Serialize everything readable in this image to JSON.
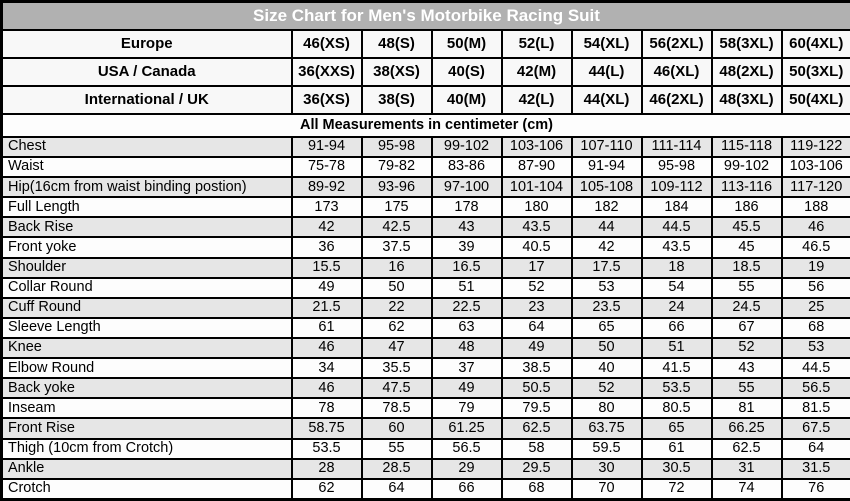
{
  "chart_data": {
    "type": "table",
    "title": "Size Chart for Men's Motorbike Racing Suit",
    "units_note": "All Measurements in centimeter (cm)",
    "size_header_rows": [
      {
        "label": "Europe",
        "values": [
          "46(XS)",
          "48(S)",
          "50(M)",
          "52(L)",
          "54(XL)",
          "56(2XL)",
          "58(3XL)",
          "60(4XL)"
        ]
      },
      {
        "label": "USA / Canada",
        "values": [
          "36(XXS)",
          "38(XS)",
          "40(S)",
          "42(M)",
          "44(L)",
          "46(XL)",
          "48(2XL)",
          "50(3XL)"
        ]
      },
      {
        "label": "International / UK",
        "values": [
          "36(XS)",
          "38(S)",
          "40(M)",
          "42(L)",
          "44(XL)",
          "46(2XL)",
          "48(3XL)",
          "50(4XL)"
        ]
      }
    ],
    "measurement_rows": [
      {
        "label": "Chest",
        "values": [
          "91-94",
          "95-98",
          "99-102",
          "103-106",
          "107-110",
          "111-114",
          "115-118",
          "119-122"
        ]
      },
      {
        "label": "Waist",
        "values": [
          "75-78",
          "79-82",
          "83-86",
          "87-90",
          "91-94",
          "95-98",
          "99-102",
          "103-106"
        ]
      },
      {
        "label": "Hip(16cm from waist binding postion)",
        "values": [
          "89-92",
          "93-96",
          "97-100",
          "101-104",
          "105-108",
          "109-112",
          "113-116",
          "117-120"
        ]
      },
      {
        "label": "Full Length",
        "values": [
          "173",
          "175",
          "178",
          "180",
          "182",
          "184",
          "186",
          "188"
        ]
      },
      {
        "label": "Back Rise",
        "values": [
          "42",
          "42.5",
          "43",
          "43.5",
          "44",
          "44.5",
          "45.5",
          "46"
        ]
      },
      {
        "label": "Front yoke",
        "values": [
          "36",
          "37.5",
          "39",
          "40.5",
          "42",
          "43.5",
          "45",
          "46.5"
        ]
      },
      {
        "label": "Shoulder",
        "values": [
          "15.5",
          "16",
          "16.5",
          "17",
          "17.5",
          "18",
          "18.5",
          "19"
        ]
      },
      {
        "label": "Collar Round",
        "values": [
          "49",
          "50",
          "51",
          "52",
          "53",
          "54",
          "55",
          "56"
        ]
      },
      {
        "label": "Cuff Round",
        "values": [
          "21.5",
          "22",
          "22.5",
          "23",
          "23.5",
          "24",
          "24.5",
          "25"
        ]
      },
      {
        "label": "Sleeve Length",
        "values": [
          "61",
          "62",
          "63",
          "64",
          "65",
          "66",
          "67",
          "68"
        ]
      },
      {
        "label": "Knee",
        "values": [
          "46",
          "47",
          "48",
          "49",
          "50",
          "51",
          "52",
          "53"
        ]
      },
      {
        "label": "Elbow Round",
        "values": [
          "34",
          "35.5",
          "37",
          "38.5",
          "40",
          "41.5",
          "43",
          "44.5"
        ]
      },
      {
        "label": "Back yoke",
        "values": [
          "46",
          "47.5",
          "49",
          "50.5",
          "52",
          "53.5",
          "55",
          "56.5"
        ]
      },
      {
        "label": "Inseam",
        "values": [
          "78",
          "78.5",
          "79",
          "79.5",
          "80",
          "80.5",
          "81",
          "81.5"
        ]
      },
      {
        "label": "Front Rise",
        "values": [
          "58.75",
          "60",
          "61.25",
          "62.5",
          "63.75",
          "65",
          "66.25",
          "67.5"
        ]
      },
      {
        "label": "Thigh (10cm from Crotch)",
        "values": [
          "53.5",
          "55",
          "56.5",
          "58",
          "59.5",
          "61",
          "62.5",
          "64"
        ]
      },
      {
        "label": "Ankle",
        "values": [
          "28",
          "28.5",
          "29",
          "29.5",
          "30",
          "30.5",
          "31",
          "31.5"
        ]
      },
      {
        "label": "Crotch",
        "values": [
          "62",
          "64",
          "66",
          "68",
          "70",
          "72",
          "74",
          "76"
        ]
      }
    ]
  },
  "colors": {
    "title_bg": "#b1b1b1",
    "title_text": "#ffffff",
    "header_row_bg": "#f8f8f8",
    "shaded_row_bg": "#e6e6e6",
    "plain_row_bg": "#fdfdfd",
    "border": "#000000",
    "text": "#000000"
  }
}
